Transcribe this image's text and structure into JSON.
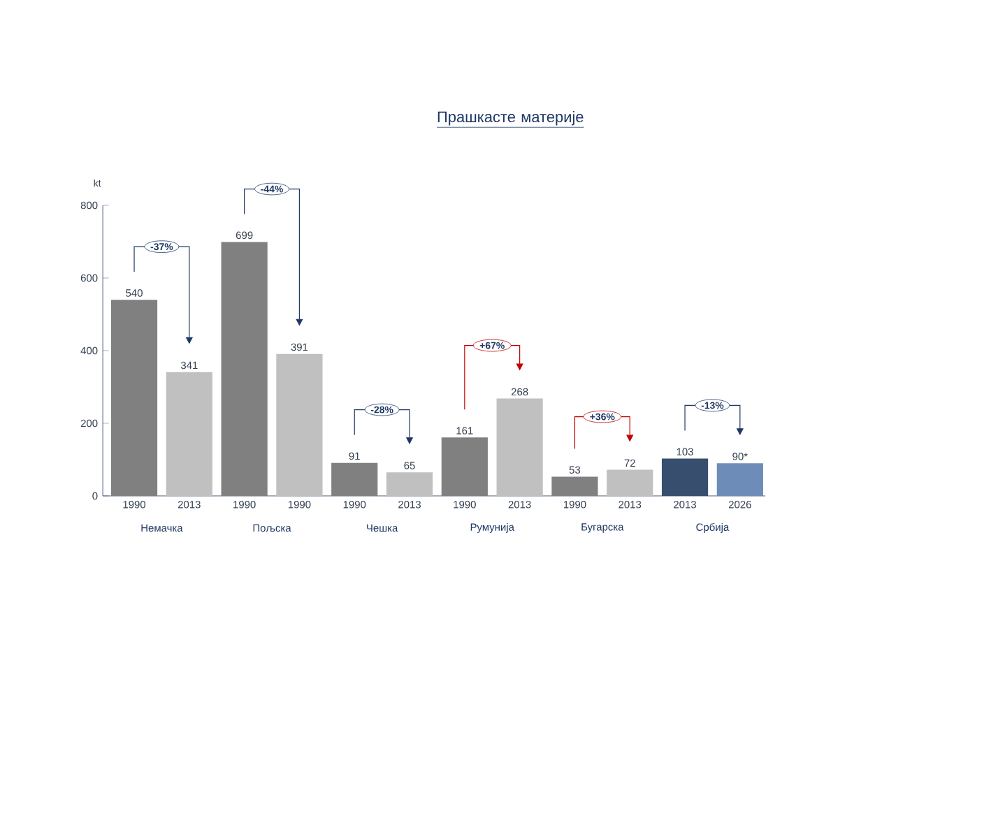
{
  "chart_data": {
    "type": "bar",
    "title": "Прашкасте материје",
    "ylabel": "kt",
    "categories": [
      "1990",
      "2013",
      "1990",
      "1990",
      "1990",
      "2013",
      "1990",
      "2013",
      "1990",
      "2013",
      "2013",
      "2026"
    ],
    "values": [
      540,
      341,
      699,
      391,
      91,
      65,
      161,
      268,
      53,
      72,
      103,
      90
    ],
    "value_labels": [
      "540",
      "341",
      "699",
      "391",
      "91",
      "65",
      "161",
      "268",
      "53",
      "72",
      "103",
      "90*"
    ],
    "colors": [
      "#808080",
      "#c0c0c0",
      "#808080",
      "#c0c0c0",
      "#808080",
      "#c0c0c0",
      "#808080",
      "#c0c0c0",
      "#808080",
      "#c0c0c0",
      "#374e6e",
      "#6d8cb8"
    ],
    "ylim": [
      0,
      800
    ],
    "yticks": [
      0,
      200,
      400,
      600,
      800
    ],
    "annotations": [
      "Немачка",
      "Пољска",
      "Чешка",
      "Румунија",
      "Бугарска",
      "Србија",
      "-37%",
      "-44%",
      "-28%",
      "+67%",
      "+36%",
      "-13%"
    ]
  }
}
